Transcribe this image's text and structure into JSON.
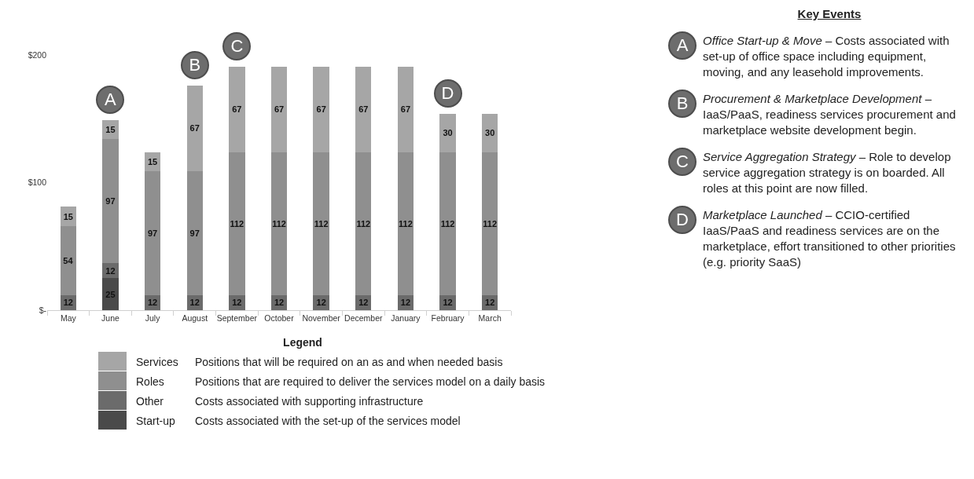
{
  "chart_data": {
    "type": "bar",
    "stacked": true,
    "legend_title": "Legend",
    "legend": "bottom",
    "categories": [
      "May",
      "June",
      "July",
      "August",
      "September",
      "October",
      "November",
      "December",
      "January",
      "February",
      "March"
    ],
    "series": [
      {
        "name": "Start-up",
        "color": "#4a4a4a",
        "values": [
          null,
          25,
          null,
          null,
          null,
          null,
          null,
          null,
          null,
          null,
          null
        ]
      },
      {
        "name": "Other",
        "color": "#6b6b6b",
        "values": [
          12,
          12,
          12,
          12,
          12,
          12,
          12,
          12,
          12,
          12,
          12
        ]
      },
      {
        "name": "Roles",
        "color": "#8f8f8f",
        "values": [
          54,
          97,
          97,
          97,
          112,
          112,
          112,
          112,
          112,
          112,
          112
        ]
      },
      {
        "name": "Services",
        "color": "#a6a6a6",
        "values": [
          15,
          15,
          15,
          67,
          67,
          67,
          67,
          67,
          67,
          30,
          30
        ]
      }
    ],
    "ylim": [
      0,
      200
    ],
    "yticks": [
      {
        "value": 0,
        "label": "$-"
      },
      {
        "value": 100,
        "label": "$100"
      },
      {
        "value": 200,
        "label": "$200"
      }
    ],
    "grid": false,
    "data_labels": true,
    "annotations": [
      {
        "text": "A",
        "x": "June"
      },
      {
        "text": "B",
        "x": "August"
      },
      {
        "text": "C",
        "x": "September"
      },
      {
        "text": "D",
        "x": "February"
      },
      "Key Events",
      "Office Start-up & Move – Costs associated with set-up of office space including equipment, moving, and any leasehold improvements.",
      "Procurement & Marketplace Development – IaaS/PaaS, readiness services procurement and marketplace website development begin.",
      "Service Aggregation Strategy – Role to develop service aggregation strategy is on boarded. All roles at this point are now filled.",
      "Marketplace Launched – CCIO-certified IaaS/PaaS and readiness services are on the marketplace, effort transitioned to other priorities (e.g. priority SaaS)",
      "Positions that will be required on an as and when needed basis",
      "Positions that are required to deliver the services model on a daily basis",
      "Costs associated with supporting infrastructure",
      "Costs associated with the set-up of the services model"
    ]
  }
}
